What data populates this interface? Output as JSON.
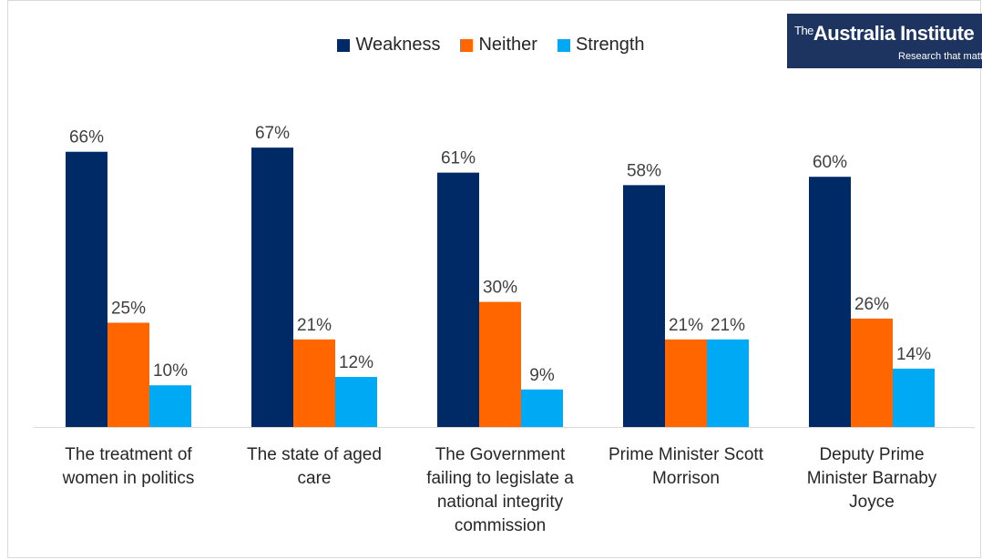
{
  "logo": {
    "prefix": "The",
    "name": "Australia Institute",
    "tagline": "Research that matte"
  },
  "chart_data": {
    "type": "bar",
    "categories": [
      [
        "The treatment of",
        "women in politics"
      ],
      [
        "The state of aged",
        "care"
      ],
      [
        "The Government",
        "failing to legislate a",
        "national integrity",
        "commission"
      ],
      [
        "Prime Minister Scott",
        "Morrison"
      ],
      [
        "Deputy Prime",
        "Minister Barnaby",
        "Joyce"
      ]
    ],
    "series": [
      {
        "name": "Weakness",
        "color": "#002a66",
        "values": [
          66,
          67,
          61,
          58,
          60
        ],
        "labels": [
          "66%",
          "67%",
          "61%",
          "58%",
          "60%"
        ]
      },
      {
        "name": "Neither",
        "color": "#ff6600",
        "values": [
          25,
          21,
          30,
          21,
          26
        ],
        "labels": [
          "25%",
          "21%",
          "30%",
          "21%",
          "26%"
        ]
      },
      {
        "name": "Strength",
        "color": "#00a9f4",
        "values": [
          10,
          12,
          9,
          21,
          14
        ],
        "labels": [
          "10%",
          "12%",
          "9%",
          "21%",
          "14%"
        ]
      }
    ],
    "ylim": [
      0,
      100
    ],
    "legend_position": "top-center",
    "grid": false
  }
}
